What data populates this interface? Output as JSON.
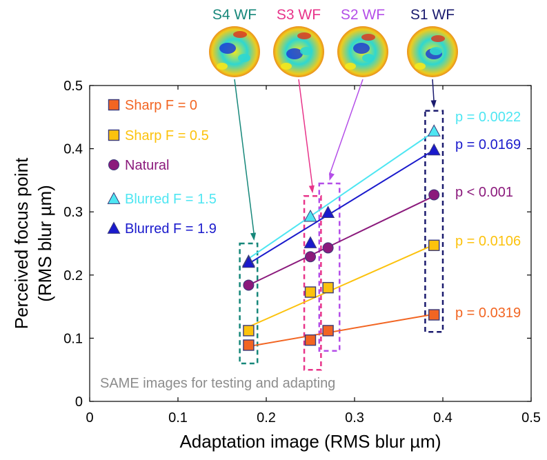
{
  "chart_data": {
    "type": "scatter",
    "xlabel": "Adaptation image (RMS blur µm)",
    "ylabel_line1": "Perceived focus point",
    "ylabel_line2": "(RMS blur µm)",
    "xlim": [
      0,
      0.5
    ],
    "ylim": [
      0,
      0.5
    ],
    "x_ticks": [
      0,
      0.1,
      0.2,
      0.3,
      0.4,
      0.5
    ],
    "x_tick_labels": [
      "0",
      "0.1",
      "0.2",
      "0.3",
      "0.4",
      "0.5"
    ],
    "y_ticks": [
      0,
      0.1,
      0.2,
      0.3,
      0.4,
      0.5
    ],
    "y_tick_labels": [
      "0",
      "0.1",
      "0.2",
      "0.3",
      "0.4",
      "0.5"
    ],
    "grid": false,
    "legend_position": "top-left",
    "x": [
      0.18,
      0.25,
      0.27,
      0.39
    ],
    "series": [
      {
        "name": "Sharp F = 0",
        "marker": "square",
        "color": "#f26522",
        "values": [
          0.089,
          0.097,
          0.112,
          0.137
        ],
        "fit": [
          [
            0.18,
            0.087
          ],
          [
            0.39,
            0.138
          ]
        ],
        "pvalue": "p = 0.0319"
      },
      {
        "name": "Sharp F = 0.5",
        "marker": "square",
        "color": "#fcc20d",
        "values": [
          0.112,
          0.173,
          0.18,
          0.247
        ],
        "fit": [
          [
            0.18,
            0.118
          ],
          [
            0.39,
            0.248
          ]
        ],
        "pvalue": "p = 0.0106"
      },
      {
        "name": "Natural",
        "marker": "circle",
        "color": "#8b1a7c",
        "values": [
          0.184,
          0.229,
          0.243,
          0.327
        ],
        "fit": [
          [
            0.18,
            0.184
          ],
          [
            0.39,
            0.325
          ]
        ],
        "pvalue": "p < 0.001"
      },
      {
        "name": "Blurred F = 1.5",
        "marker": "triangle",
        "color": "#4ee6f2",
        "values": [
          0.222,
          0.293,
          0.299,
          0.428
        ],
        "fit": [
          [
            0.18,
            0.226
          ],
          [
            0.39,
            0.427
          ]
        ],
        "pvalue": "p = 0.0022"
      },
      {
        "name": "Blurred F = 1.9",
        "marker": "triangle",
        "color": "#1a1acc",
        "values": [
          0.22,
          0.251,
          0.299,
          0.398
        ],
        "fit": [
          [
            0.18,
            0.218
          ],
          [
            0.39,
            0.398
          ]
        ],
        "pvalue": "p = 0.0169"
      }
    ],
    "highlight_boxes": [
      {
        "label": "S4 WF",
        "color": "#16877a",
        "x_range": [
          0.17,
          0.19
        ],
        "y_range": [
          0.06,
          0.25
        ]
      },
      {
        "label": "S3 WF",
        "color": "#e8348a",
        "x_range": [
          0.243,
          0.262
        ],
        "y_range": [
          0.05,
          0.325
        ]
      },
      {
        "label": "S2 WF",
        "color": "#b44ee8",
        "x_range": [
          0.26,
          0.283
        ],
        "y_range": [
          0.08,
          0.345
        ]
      },
      {
        "label": "S1 WF",
        "color": "#1a1a6e",
        "x_range": [
          0.38,
          0.4
        ],
        "y_range": [
          0.11,
          0.46
        ]
      }
    ],
    "annotation": "SAME images for testing and adapting"
  },
  "colors": {
    "axis": "#000000",
    "marker_stroke": "#3a3a7a",
    "annotation_text": "#8c8c8c",
    "wavefront_low": "#1a3fd6",
    "wavefront_mid": "#2fd7d0",
    "wavefront_high": "#f4e81c",
    "wavefront_peak": "#e0321a"
  }
}
